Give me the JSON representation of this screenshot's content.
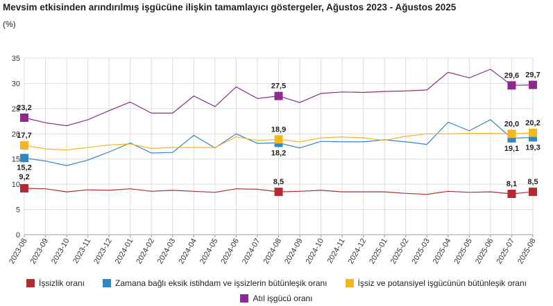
{
  "title": "Mevsim etkisinden arındırılmış işgücüne ilişkin tamamlayıcı göstergeler, Ağustos 2023 - Ağustos 2025",
  "unit": "(%)",
  "chart_data": {
    "type": "line",
    "categories": [
      "2023-08",
      "2023-09",
      "2023-10",
      "2023-11",
      "2023-12",
      "2024-01",
      "2024-02",
      "2024-03",
      "2024-04",
      "2024-05",
      "2024-06",
      "2024-07",
      "2024-08",
      "2024-09",
      "2024-10",
      "2024-11",
      "2024-12",
      "2025-01",
      "2025-02",
      "2025-03",
      "2025-04",
      "2025-05",
      "2025-06",
      "2025-07",
      "2025-08"
    ],
    "ylim": [
      0,
      35
    ],
    "yticks": [
      0,
      5,
      10,
      15,
      20,
      25,
      30,
      35
    ],
    "grid": true,
    "legend_position": "bottom",
    "series": [
      {
        "name": "İşsizlik oranı",
        "color": "#b52a2e",
        "values": [
          9.2,
          9.1,
          8.5,
          8.9,
          8.8,
          9.1,
          8.6,
          8.8,
          8.6,
          8.4,
          9.1,
          9.0,
          8.5,
          8.6,
          8.8,
          8.5,
          8.5,
          8.5,
          8.2,
          8.0,
          8.6,
          8.4,
          8.5,
          8.1,
          8.5
        ],
        "labels": {
          "0": "9,2",
          "12": "8,5",
          "23": "8,1",
          "24": "8,5"
        }
      },
      {
        "name": "Zamana bağlı eksik istihdam ve işsizlerin bütünleşik oranı",
        "color": "#2f86c8",
        "values": [
          15.2,
          14.6,
          13.7,
          14.8,
          16.4,
          18.2,
          16.2,
          16.3,
          19.7,
          17.2,
          20.0,
          18.1,
          18.2,
          17.2,
          18.5,
          18.4,
          18.4,
          18.8,
          18.4,
          17.9,
          22.3,
          20.6,
          22.8,
          19.1,
          19.3
        ],
        "labels": {
          "0": "15,2",
          "12": "18,2",
          "23": "19,1",
          "24": "19,3"
        }
      },
      {
        "name": "İşsiz ve potansiyel işgücünün bütünleşik oranı",
        "color": "#f5b51f",
        "values": [
          17.7,
          17.0,
          16.8,
          17.3,
          17.8,
          18.0,
          17.1,
          17.3,
          17.3,
          17.3,
          19.4,
          18.7,
          18.9,
          18.4,
          19.2,
          19.4,
          19.2,
          18.7,
          19.5,
          20.0,
          20.0,
          20.1,
          20.1,
          20.0,
          20.2
        ],
        "labels": {
          "0": "17,7",
          "12": "18,9",
          "23": "20,0",
          "24": "20,2"
        }
      },
      {
        "name": "Atıl işgücü oranı",
        "color": "#8e2a8c",
        "values": [
          23.2,
          22.2,
          21.6,
          22.8,
          24.6,
          26.3,
          24.1,
          24.1,
          27.5,
          25.4,
          29.3,
          27.0,
          27.5,
          26.2,
          28.0,
          28.3,
          28.2,
          28.4,
          28.5,
          28.7,
          32.2,
          31.1,
          32.8,
          29.6,
          29.7
        ],
        "labels": {
          "0": "23,2",
          "12": "27,5",
          "23": "29,6",
          "24": "29,7"
        }
      }
    ]
  }
}
